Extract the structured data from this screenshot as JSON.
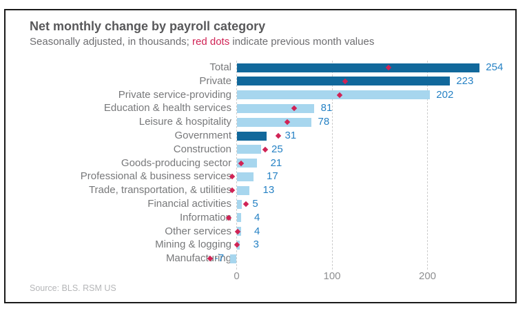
{
  "header": {
    "title": "Net monthly change by payroll category",
    "subtitle_prefix": "Seasonally adjusted, in thousands; ",
    "subtitle_highlight": "red dots",
    "subtitle_suffix": " indicate previous month values"
  },
  "source": "Source: BLS. RSM US",
  "chart_data": {
    "type": "bar",
    "orientation": "horizontal",
    "title": "Net monthly change by payroll category",
    "subtitle": "Seasonally adjusted, in thousands; red dots indicate previous month values",
    "xlabel": "",
    "ylabel": "",
    "axis_ticks": [
      0,
      100,
      200
    ],
    "xlim": [
      -40,
      290
    ],
    "grid": "vertical-dashed",
    "categories": [
      "Total",
      "Private",
      "Private service-providing",
      "Education & health services",
      "Leisure & hospitality",
      "Government",
      "Construction",
      "Goods-producing sector",
      "Professional & business services",
      "Trade, transportation, & utilities",
      "Financial activities",
      "Information",
      "Other services",
      "Mining & logging",
      "Manufacturing"
    ],
    "series": [
      {
        "name": "Current month (bars)",
        "values": [
          254,
          223,
          202,
          81,
          78,
          31,
          25,
          21,
          17,
          13,
          5,
          4,
          4,
          3,
          -7
        ]
      },
      {
        "name": "Previous month (red dots)",
        "values": [
          159,
          114,
          108,
          60,
          53,
          44,
          30,
          5,
          -5,
          -5,
          10,
          -8,
          1,
          0,
          -28
        ]
      }
    ],
    "bar_style": [
      "dark",
      "dark",
      "light",
      "light",
      "light",
      "dark",
      "light",
      "light",
      "light",
      "light",
      "light",
      "light",
      "light",
      "light",
      "light"
    ],
    "colors": {
      "dark_bar": "#11689b",
      "light_bar": "#a7d6ee",
      "prev_dot": "#d02355",
      "value_label": "#2581c4",
      "category_label": "#77787a",
      "axis_label": "#8e8f91",
      "gridline": "#cccccc",
      "title": "#58585a",
      "subtitle": "#6d6d70",
      "subtitle_highlight": "#d02355",
      "source": "#b5b6b8",
      "frame_border": "#1a1a1a"
    }
  }
}
